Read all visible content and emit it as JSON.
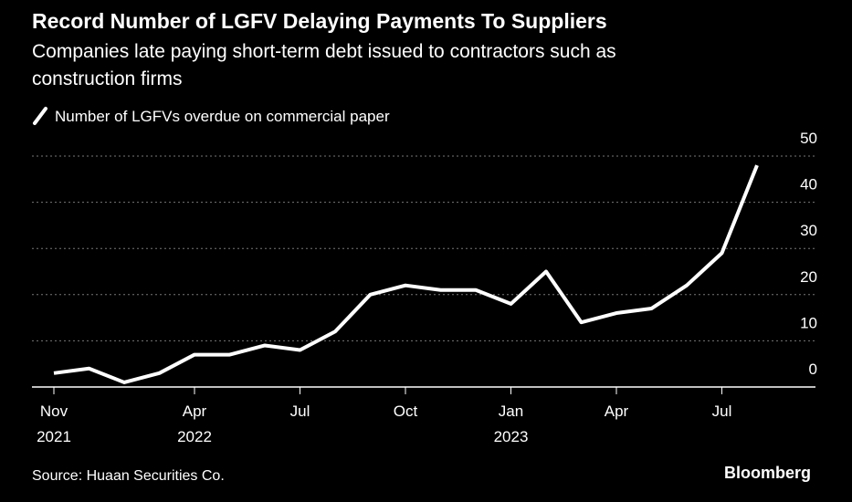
{
  "chart_data": {
    "type": "line",
    "title": "Record Number of LGFV Delaying Payments To Suppliers",
    "subtitle": [
      "Companies late paying short-term debt issued to contractors such as",
      "construction firms"
    ],
    "categories": [
      "Nov\n2021",
      null,
      null,
      null,
      "Apr\n2022",
      null,
      null,
      "Jul",
      null,
      null,
      "Oct",
      null,
      null,
      "Jan\n2023",
      null,
      null,
      "Apr",
      null,
      null,
      "Jul",
      null
    ],
    "series": [
      {
        "name": "Number of LGFVs overdue on commercial paper",
        "color": "#ffffff",
        "values": [
          3,
          4,
          1,
          3,
          7,
          7,
          9,
          8,
          12,
          20,
          22,
          21,
          21,
          18,
          25,
          14,
          16,
          17,
          22,
          29,
          48
        ]
      }
    ],
    "ylim": [
      0,
      50
    ],
    "yticks": [
      0,
      10,
      20,
      30,
      40,
      50
    ],
    "grid": true,
    "source": "Source: Huaan Securities Co.",
    "brand": "Bloomberg"
  }
}
